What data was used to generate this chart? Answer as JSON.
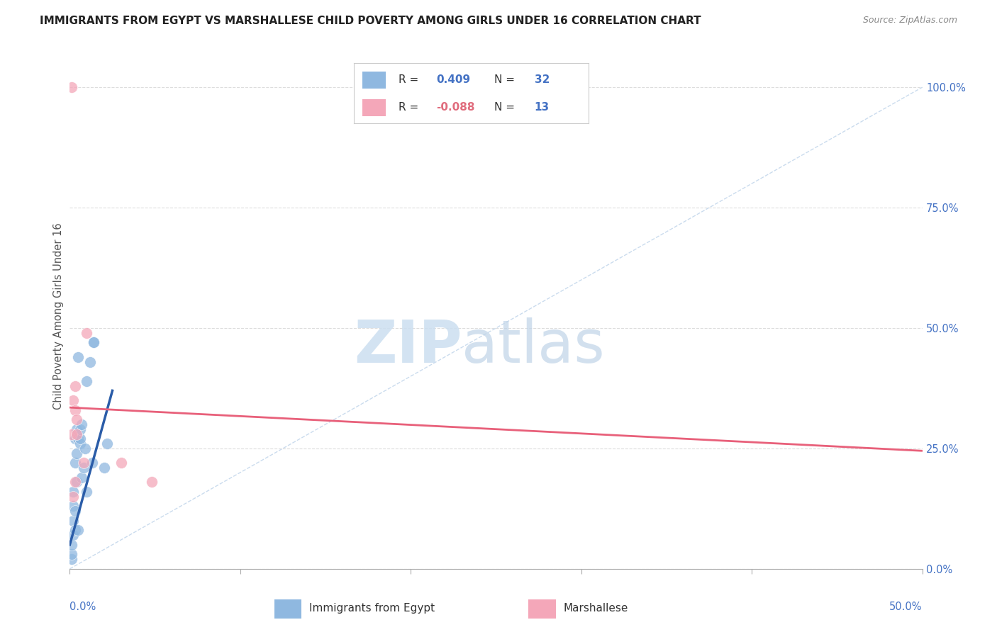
{
  "title": "IMMIGRANTS FROM EGYPT VS MARSHALLESE CHILD POVERTY AMONG GIRLS UNDER 16 CORRELATION CHART",
  "source": "Source: ZipAtlas.com",
  "ylabel": "Child Poverty Among Girls Under 16",
  "legend_label1": "Immigrants from Egypt",
  "legend_label2": "Marshallese",
  "R1": 0.409,
  "N1": 32,
  "R2": -0.088,
  "N2": 13,
  "color_blue": "#8fb8e0",
  "color_pink": "#f4a7b9",
  "color_blue_line": "#2a5ca8",
  "color_pink_line": "#e8607a",
  "color_diag": "#c5d8ec",
  "blue_x": [
    0.001,
    0.001,
    0.001,
    0.002,
    0.002,
    0.002,
    0.002,
    0.003,
    0.003,
    0.003,
    0.003,
    0.004,
    0.004,
    0.004,
    0.005,
    0.005,
    0.005,
    0.006,
    0.006,
    0.006,
    0.007,
    0.007,
    0.008,
    0.009,
    0.01,
    0.01,
    0.012,
    0.013,
    0.014,
    0.014,
    0.02,
    0.022
  ],
  "blue_y": [
    0.02,
    0.03,
    0.05,
    0.07,
    0.1,
    0.13,
    0.16,
    0.08,
    0.12,
    0.22,
    0.27,
    0.18,
    0.24,
    0.29,
    0.08,
    0.27,
    0.44,
    0.26,
    0.27,
    0.29,
    0.19,
    0.3,
    0.21,
    0.25,
    0.16,
    0.39,
    0.43,
    0.22,
    0.47,
    0.47,
    0.21,
    0.26
  ],
  "pink_x": [
    0.001,
    0.001,
    0.002,
    0.002,
    0.003,
    0.003,
    0.003,
    0.004,
    0.004,
    0.008,
    0.01,
    0.03,
    0.048
  ],
  "pink_y": [
    1.0,
    0.28,
    0.15,
    0.35,
    0.18,
    0.33,
    0.38,
    0.31,
    0.28,
    0.22,
    0.49,
    0.22,
    0.18
  ],
  "xmin": 0.0,
  "xmax": 0.5,
  "ymin": 0.0,
  "ymax": 1.05,
  "blue_line_x0": 0.0,
  "blue_line_y0": 0.05,
  "blue_line_x1": 0.025,
  "blue_line_y1": 0.37,
  "pink_line_x0": 0.0,
  "pink_line_y0": 0.335,
  "pink_line_x1": 0.5,
  "pink_line_y1": 0.245,
  "watermark_zip": "ZIP",
  "watermark_atlas": "atlas",
  "background_color": "#ffffff",
  "grid_color": "#dddddd",
  "right_ytick_vals": [
    0.0,
    0.25,
    0.5,
    0.75,
    1.0
  ],
  "right_yticklabels": [
    "0.0%",
    "25.0%",
    "50.0%",
    "75.0%",
    "100.0%"
  ],
  "title_fontsize": 11,
  "source_fontsize": 9,
  "tick_label_color": "#4472c4",
  "legend_R_color": "#333333",
  "legend_N_blue_color": "#4472c4",
  "legend_val_blue_color": "#4472c4",
  "legend_val_pink_color": "#e06c7d"
}
